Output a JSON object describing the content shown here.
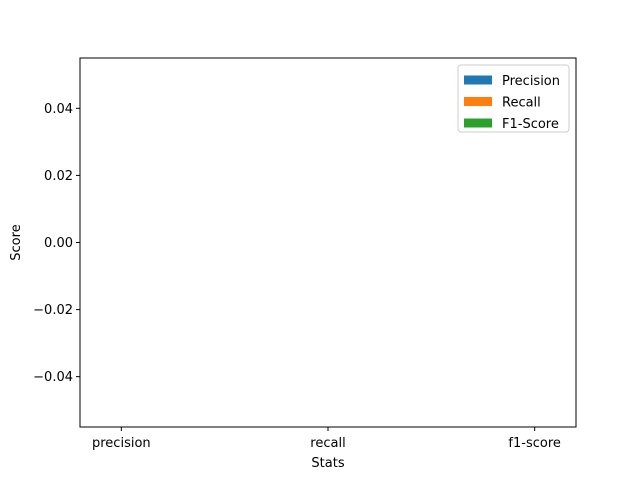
{
  "chart_data": {
    "type": "bar",
    "categories": [
      "precision",
      "recall",
      "f1-score"
    ],
    "series": [
      {
        "name": "Precision",
        "values": [
          0,
          0,
          0
        ],
        "color": "#1f77b4"
      },
      {
        "name": "Recall",
        "values": [
          0,
          0,
          0
        ],
        "color": "#ff7f0e"
      },
      {
        "name": "F1-Score",
        "values": [
          0,
          0,
          0
        ],
        "color": "#2ca02c"
      }
    ],
    "xlabel": "Stats",
    "ylabel": "Score",
    "ylim": [
      -0.055,
      0.055
    ],
    "yticks": [
      {
        "value": 0.04,
        "label": "0.04"
      },
      {
        "value": 0.02,
        "label": "0.02"
      },
      {
        "value": 0,
        "label": "0.00"
      },
      {
        "value": -0.02,
        "label": "−0.02"
      },
      {
        "value": -0.04,
        "label": "−0.04"
      }
    ],
    "grid": false,
    "legend_position": "top-right"
  }
}
